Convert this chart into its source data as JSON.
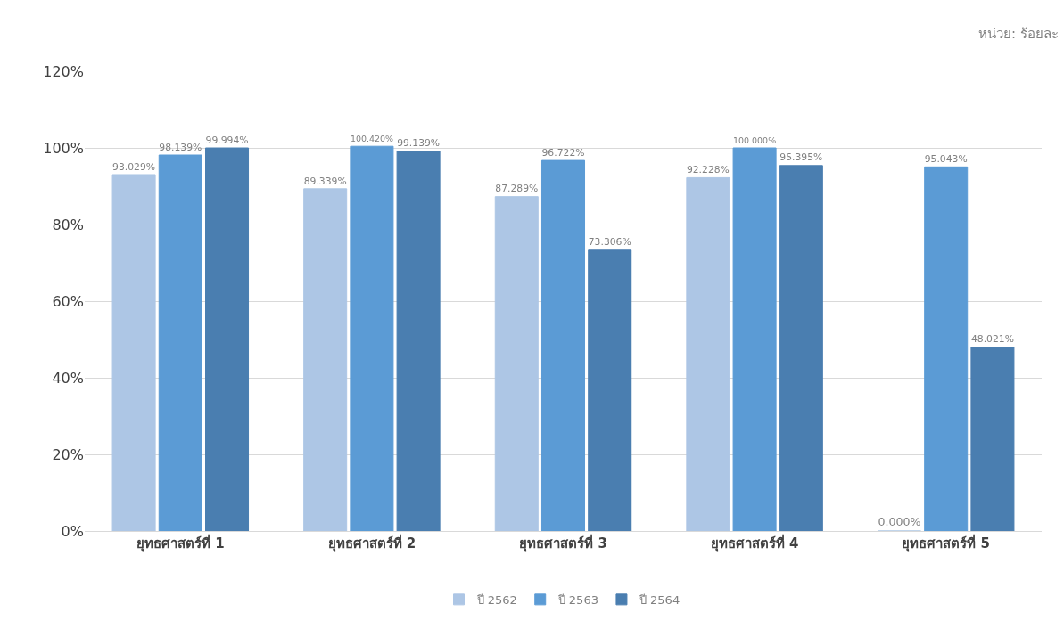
{
  "chart_data": {
    "type": "bar",
    "categories": [
      "ยุทธศาสตร์ที่ 1",
      "ยุทธศาสตร์ที่ 2",
      "ยุทธศาสตร์ที่ 3",
      "ยุทธศาสตร์ที่ 4",
      "ยุทธศาสตร์ที่ 5"
    ],
    "series": [
      {
        "name": "ปี 2562",
        "color": "#adc6e5",
        "values": [
          93.029,
          89.339,
          87.289,
          92.228,
          0
        ],
        "value_labels": [
          "93.029%",
          "89.339%",
          "87.289%",
          "92.228%",
          "0.000%"
        ]
      },
      {
        "name": "ปี 2563",
        "color": "#5b9bd5",
        "values": [
          98.139,
          100.42,
          96.722,
          100,
          95.043
        ],
        "value_labels": [
          "98.139%",
          "100.420%",
          "96.722%",
          "100.000%",
          "95.043%"
        ]
      },
      {
        "name": "ปี 2564",
        "color": "#4a7eb0",
        "values": [
          99.994,
          99.139,
          73.306,
          95.395,
          48.021
        ],
        "value_labels": [
          "99.994%",
          "99.139%",
          "73.306%",
          "95.395%",
          "48.021%"
        ]
      }
    ],
    "ylim": [
      0,
      120
    ],
    "yticks": [
      {
        "value": 0,
        "label": "0%"
      },
      {
        "value": 20,
        "label": "20%"
      },
      {
        "value": 40,
        "label": "40%"
      },
      {
        "value": 60,
        "label": "60%"
      },
      {
        "value": 80,
        "label": "80%"
      },
      {
        "value": 100,
        "label": "100%"
      },
      {
        "value": 120,
        "label": "120%"
      }
    ],
    "grid": "y",
    "legend": "bottom",
    "annotations": [
      "หน่วย: ร้อยละ"
    ]
  }
}
